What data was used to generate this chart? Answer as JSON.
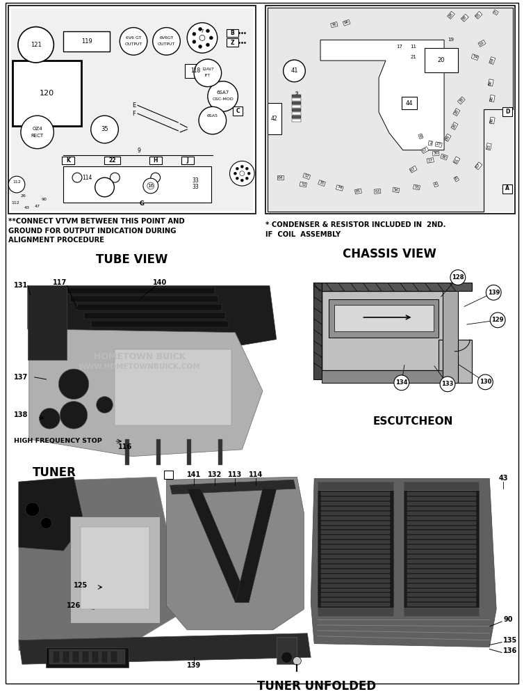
{
  "background_color": "#ffffff",
  "tube_view_label": "TUBE VIEW",
  "chassis_view_label": "CHASSIS VIEW",
  "escutcheon_label": "ESCUTCHEON",
  "tuner_label": "TUNER",
  "tuner_unfolded_label": "TUNER UNFOLDED",
  "note1": "**CONNECT VTVM BETWEEN THIS POINT AND\nGROUND FOR OUTPUT INDICATION DURING\nALIGNMENT PROCEDURE",
  "note2": "* CONDENSER & RESISTOR INCLUDED IN  2ND.\nIF  COIL  ASSEMBLY",
  "watermark_line1": "HOMETOWN BUICK",
  "watermark_line2": "WWW.HOMETOWNBUICK.COM",
  "watermark_color": "#bbbbbb",
  "photo_bg_tuner": "#c8c8c8",
  "photo_dark": "#1a1a1a",
  "photo_mid": "#606060",
  "photo_light": "#a0a0a0",
  "photo_bright": "#d0d0d0",
  "line_color": "#000000",
  "page_bg": "#f5f5f5"
}
